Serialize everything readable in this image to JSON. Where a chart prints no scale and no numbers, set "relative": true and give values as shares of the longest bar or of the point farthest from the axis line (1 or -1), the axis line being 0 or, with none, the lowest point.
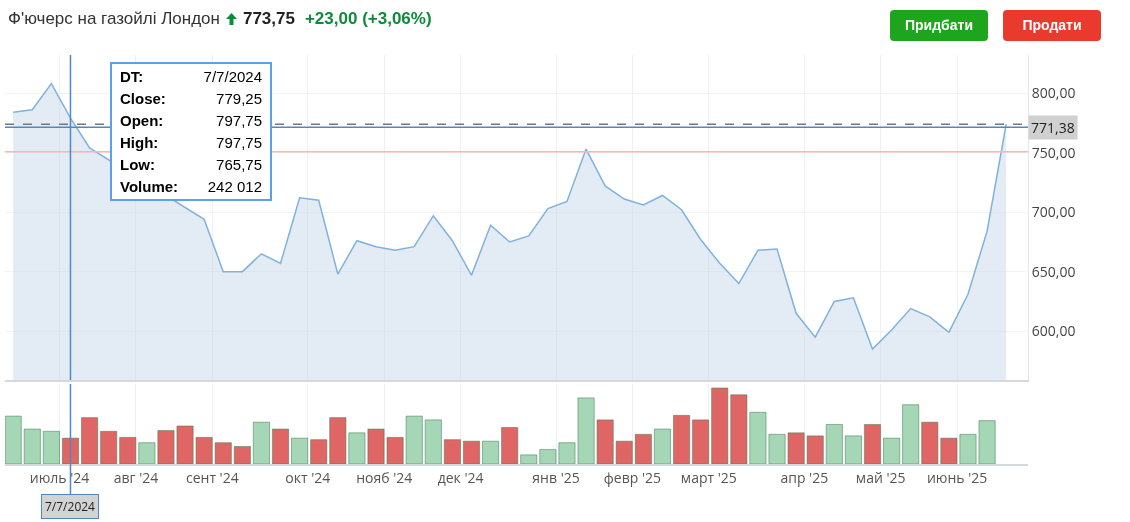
{
  "chart_data": [
    {
      "type": "other",
      "title": "Ф'ючерс на газойлі Лондон",
      "subtitle": "773,75",
      "annotations": [
        "+23,00 (+3,06%)",
        "Придбати",
        "Продати"
      ]
    },
    {
      "type": "area",
      "x": [
        "2024-06-16",
        "2024-06-23",
        "2024-06-30",
        "2024-07-07",
        "2024-07-14",
        "2024-07-21",
        "2024-07-28",
        "2024-08-04",
        "2024-08-11",
        "2024-08-18",
        "2024-08-25",
        "2024-09-01",
        "2024-09-08",
        "2024-09-15",
        "2024-09-22",
        "2024-09-29",
        "2024-10-06",
        "2024-10-13",
        "2024-10-20",
        "2024-10-27",
        "2024-11-03",
        "2024-11-10",
        "2024-11-17",
        "2024-11-24",
        "2024-12-01",
        "2024-12-08",
        "2024-12-15",
        "2024-12-22",
        "2024-12-29",
        "2025-01-05",
        "2025-01-12",
        "2025-01-19",
        "2025-01-26",
        "2025-02-02",
        "2025-02-09",
        "2025-02-16",
        "2025-02-23",
        "2025-03-02",
        "2025-03-09",
        "2025-03-16",
        "2025-03-23",
        "2025-03-30",
        "2025-04-06",
        "2025-04-13",
        "2025-04-20",
        "2025-04-27",
        "2025-05-04",
        "2025-05-11",
        "2025-05-18",
        "2025-05-25",
        "2025-06-01",
        "2025-06-08",
        "2025-06-15"
      ],
      "series": [
        {
          "color": "#7fb2dd",
          "values": [
            784,
            786,
            808,
            779,
            754,
            null,
            null,
            null,
            null,
            null,
            694,
            650,
            650,
            665,
            657,
            712,
            710,
            648,
            676,
            671,
            668,
            671,
            697,
            676,
            647,
            689,
            675,
            680,
            703,
            709,
            753,
            722,
            711,
            706,
            714,
            702,
            677,
            657,
            640,
            668,
            669,
            615,
            595,
            625,
            628,
            585,
            601,
            619,
            612,
            599,
            631,
            684,
            774
          ]
        }
      ],
      "xlim": [
        "2024-06-13",
        "2025-06-23"
      ],
      "xticks": [
        "2024-07-03",
        "2024-07-31",
        "2024-08-28",
        "2024-10-02",
        "2024-10-30",
        "2024-11-27",
        "2025-01-01",
        "2025-01-29",
        "2025-02-26",
        "2025-04-02",
        "2025-04-30",
        "2025-05-28"
      ],
      "ylim": [
        559,
        832
      ],
      "yticks": [
        {
          "value": 600,
          "label": "600,00"
        },
        {
          "value": 650,
          "label": "650,00"
        },
        {
          "value": 700,
          "label": "700,00"
        },
        {
          "value": 750,
          "label": "750,00"
        },
        {
          "value": 800,
          "label": "800,00"
        }
      ],
      "tick_labels": "y",
      "grid": true,
      "ref_lines": [
        {
          "axis": "y",
          "value": 750.75,
          "color": "#ffb3b3",
          "line_style": "solid"
        },
        {
          "axis": "y",
          "value": 773.75,
          "color": "#777777",
          "line_style": "dashed"
        },
        {
          "axis": "y",
          "value": 771.38,
          "label": "771,38",
          "color": "#4f87c7",
          "line_style": "solid"
        },
        {
          "axis": "x",
          "value": "2024-07-07",
          "color": "#4f87c7",
          "line_style": "solid"
        }
      ],
      "annotations": [
        "DT:",
        "7/7/2024",
        "Close:",
        "779,25",
        "Open:",
        "797,75",
        "High:",
        "797,75",
        "Low:",
        "765,75",
        "Volume:",
        "242 012"
      ]
    },
    {
      "type": "bar",
      "relative": true,
      "x": [
        "2024-06-16",
        "2024-06-23",
        "2024-06-30",
        "2024-07-07",
        "2024-07-14",
        "2024-07-21",
        "2024-07-28",
        "2024-08-04",
        "2024-08-11",
        "2024-08-18",
        "2024-08-25",
        "2024-09-01",
        "2024-09-08",
        "2024-09-15",
        "2024-09-22",
        "2024-09-29",
        "2024-10-06",
        "2024-10-13",
        "2024-10-20",
        "2024-10-27",
        "2024-11-03",
        "2024-11-10",
        "2024-11-17",
        "2024-11-24",
        "2024-12-01",
        "2024-12-08",
        "2024-12-15",
        "2024-12-22",
        "2024-12-29",
        "2025-01-05",
        "2025-01-12",
        "2025-01-19",
        "2025-01-26",
        "2025-02-02",
        "2025-02-09",
        "2025-02-16",
        "2025-02-23",
        "2025-03-02",
        "2025-03-09",
        "2025-03-16",
        "2025-03-23",
        "2025-03-30",
        "2025-04-06",
        "2025-04-13",
        "2025-04-20",
        "2025-04-27",
        "2025-05-04",
        "2025-05-11",
        "2025-05-18",
        "2025-05-25",
        "2025-06-01",
        "2025-06-08"
      ],
      "values": [
        0.63,
        0.46,
        0.43,
        0.34,
        0.61,
        0.43,
        0.35,
        0.28,
        0.44,
        0.5,
        0.35,
        0.28,
        0.23,
        0.55,
        0.46,
        0.34,
        0.32,
        0.61,
        0.41,
        0.46,
        0.35,
        0.63,
        0.58,
        0.32,
        0.3,
        0.3,
        0.48,
        0.12,
        0.19,
        0.28,
        0.87,
        0.58,
        0.3,
        0.39,
        0.46,
        0.64,
        0.58,
        1,
        0.91,
        0.68,
        0.39,
        0.41,
        0.37,
        0.52,
        0.37,
        0.52,
        0.34,
        0.78,
        0.55,
        0.34,
        0.39,
        0.57
      ],
      "colors": [
        "#a5d6b5",
        "#a5d6b5",
        "#a5d6b5",
        "#e06666",
        "#e06666",
        "#e06666",
        "#e06666",
        "#a5d6b5",
        "#e06666",
        "#e06666",
        "#e06666",
        "#e06666",
        "#e06666",
        "#a5d6b5",
        "#e06666",
        "#a5d6b5",
        "#e06666",
        "#e06666",
        "#a5d6b5",
        "#e06666",
        "#e06666",
        "#a5d6b5",
        "#a5d6b5",
        "#e06666",
        "#e06666",
        "#a5d6b5",
        "#e06666",
        "#a5d6b5",
        "#a5d6b5",
        "#a5d6b5",
        "#a5d6b5",
        "#e06666",
        "#e06666",
        "#e06666",
        "#a5d6b5",
        "#e06666",
        "#e06666",
        "#e06666",
        "#e06666",
        "#a5d6b5",
        "#a5d6b5",
        "#e06666",
        "#e06666",
        "#a5d6b5",
        "#a5d6b5",
        "#e06666",
        "#a5d6b5",
        "#a5d6b5",
        "#e06666",
        "#e06666",
        "#a5d6b5",
        "#a5d6b5"
      ],
      "xlim": [
        "2024-06-13",
        "2025-06-23"
      ],
      "xticks": [
        {
          "value": "2024-07-03",
          "label": "июль '24"
        },
        {
          "value": "2024-07-31",
          "label": "авг '24"
        },
        {
          "value": "2024-08-28",
          "label": "сент '24"
        },
        {
          "value": "2024-10-02",
          "label": "окт '24"
        },
        {
          "value": "2024-10-30",
          "label": "нояб '24"
        },
        {
          "value": "2024-11-27",
          "label": "дек '24"
        },
        {
          "value": "2025-01-01",
          "label": "янв '25"
        },
        {
          "value": "2025-01-29",
          "label": "февр '25"
        },
        {
          "value": "2025-02-26",
          "label": "март '25"
        },
        {
          "value": "2025-04-02",
          "label": "апр '25"
        },
        {
          "value": "2025-04-30",
          "label": "май '25"
        },
        {
          "value": "2025-05-28",
          "label": "июнь '25"
        }
      ],
      "tick_labels": "x",
      "grid": "x",
      "ref_lines": [
        {
          "axis": "x",
          "value": "2024-07-07",
          "label": "7/7/2024",
          "color": "#4f87c7",
          "line_style": "solid"
        }
      ]
    }
  ]
}
